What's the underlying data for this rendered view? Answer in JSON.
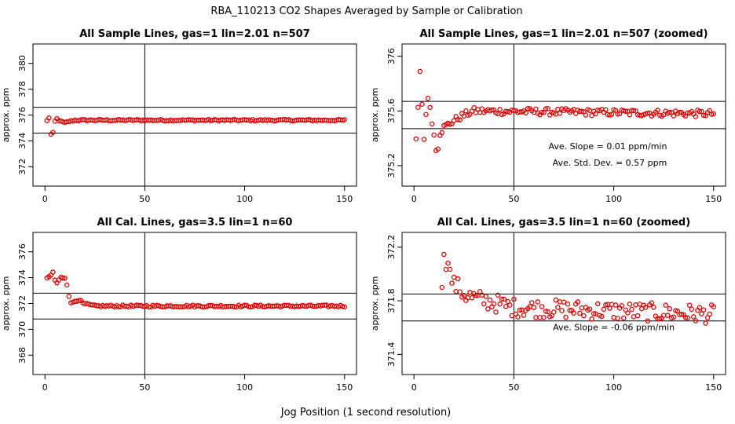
{
  "page": {
    "title": "RBA_110213  CO2 Shapes Averaged by Sample or Calibration",
    "xlabel": "Jog Position (1 second resolution)"
  },
  "colors": {
    "points": "#e00000",
    "lines": "#000000"
  },
  "chart_data": [
    {
      "type": "scatter",
      "title": "All Sample Lines, gas=1 lin=2.01 n=507",
      "ylabel": "approx. ppm",
      "xlim": [
        -6,
        156
      ],
      "ylim": [
        370.5,
        381.5
      ],
      "xticks": [
        0,
        50,
        100,
        150
      ],
      "yticks": [
        372,
        374,
        376,
        378,
        380
      ],
      "vline": 50,
      "hlines": [
        374.6,
        376.6
      ],
      "annotations": [],
      "profile": [
        [
          1,
          375.55
        ],
        [
          2,
          375.8
        ],
        [
          3,
          374.5
        ],
        [
          4,
          374.6
        ],
        [
          5,
          375.5
        ],
        [
          6,
          375.7
        ],
        [
          7,
          375.6
        ],
        [
          8,
          375.5
        ],
        [
          9,
          375.45
        ],
        [
          10,
          375.4
        ],
        [
          12,
          375.5
        ],
        [
          15,
          375.6
        ],
        [
          20,
          375.6
        ],
        [
          40,
          375.6
        ],
        [
          150,
          375.6
        ]
      ],
      "noise": 0.06
    },
    {
      "type": "scatter",
      "title": "All Sample Lines, gas=1 lin=2.01 n=507 (zoomed)",
      "ylabel": "approx. ppm",
      "xlim": [
        -6,
        156
      ],
      "ylim": [
        375.05,
        376.09
      ],
      "xticks": [
        0,
        50,
        100,
        150
      ],
      "yticks": [
        375.2,
        375.6,
        376.0
      ],
      "vline": 50,
      "hlines": [
        375.47,
        375.67
      ],
      "annotations": [
        {
          "text": "Ave. Slope =  0.01  ppm/min",
          "x": 97,
          "y": 375.32
        },
        {
          "text": "Ave. Std. Dev. =  0.57  ppm",
          "x": 98,
          "y": 375.2
        }
      ],
      "profile": [
        [
          1,
          375.38
        ],
        [
          3,
          375.89
        ],
        [
          5,
          375.41
        ],
        [
          7,
          375.7
        ],
        [
          8,
          375.65
        ],
        [
          9,
          375.5
        ],
        [
          10,
          375.43
        ],
        [
          11,
          375.33
        ],
        [
          12,
          375.34
        ],
        [
          13,
          375.44
        ],
        [
          15,
          375.48
        ],
        [
          20,
          375.53
        ],
        [
          25,
          375.57
        ],
        [
          30,
          375.6
        ],
        [
          150,
          375.58
        ]
      ],
      "noise": 0.025
    },
    {
      "type": "scatter",
      "title": "All Cal. Lines, gas=3.5 lin=1 n=60",
      "ylabel": "approx. ppm",
      "xlim": [
        -6,
        156
      ],
      "ylim": [
        366.5,
        377.5
      ],
      "xticks": [
        0,
        50,
        100,
        150
      ],
      "yticks": [
        368,
        370,
        372,
        374,
        376
      ],
      "vline": 50,
      "hlines": [
        370.8,
        372.8
      ],
      "annotations": [],
      "profile": [
        [
          1,
          373.9
        ],
        [
          3,
          374.2
        ],
        [
          4,
          374.4
        ],
        [
          5,
          373.8
        ],
        [
          6,
          373.6
        ],
        [
          8,
          374.0
        ],
        [
          10,
          374.0
        ],
        [
          11,
          373.5
        ],
        [
          12,
          372.6
        ],
        [
          13,
          372.0
        ],
        [
          15,
          372.2
        ],
        [
          17,
          372.3
        ],
        [
          19,
          372.0
        ],
        [
          25,
          371.8
        ],
        [
          150,
          371.8
        ]
      ],
      "noise": 0.08
    },
    {
      "type": "scatter",
      "title": "All Cal. Lines, gas=3.5 lin=1 n=60 (zoomed)",
      "ylabel": "approx. ppm",
      "xlim": [
        -6,
        156
      ],
      "ylim": [
        371.25,
        372.31
      ],
      "xticks": [
        0,
        50,
        100,
        150
      ],
      "yticks": [
        371.4,
        371.8,
        372.2
      ],
      "vline": 50,
      "hlines": [
        371.65,
        371.85
      ],
      "annotations": [
        {
          "text": "Ave. Slope =  -0.06  ppm/min",
          "x": 100,
          "y": 371.58
        }
      ],
      "profile": [
        [
          14,
          371.95
        ],
        [
          15,
          372.1
        ],
        [
          16,
          372.08
        ],
        [
          17,
          372.15
        ],
        [
          18,
          372.0
        ],
        [
          20,
          371.92
        ],
        [
          22,
          371.9
        ],
        [
          25,
          371.85
        ],
        [
          30,
          371.82
        ],
        [
          50,
          371.75
        ],
        [
          150,
          371.7
        ]
      ],
      "noise": 0.07
    }
  ]
}
